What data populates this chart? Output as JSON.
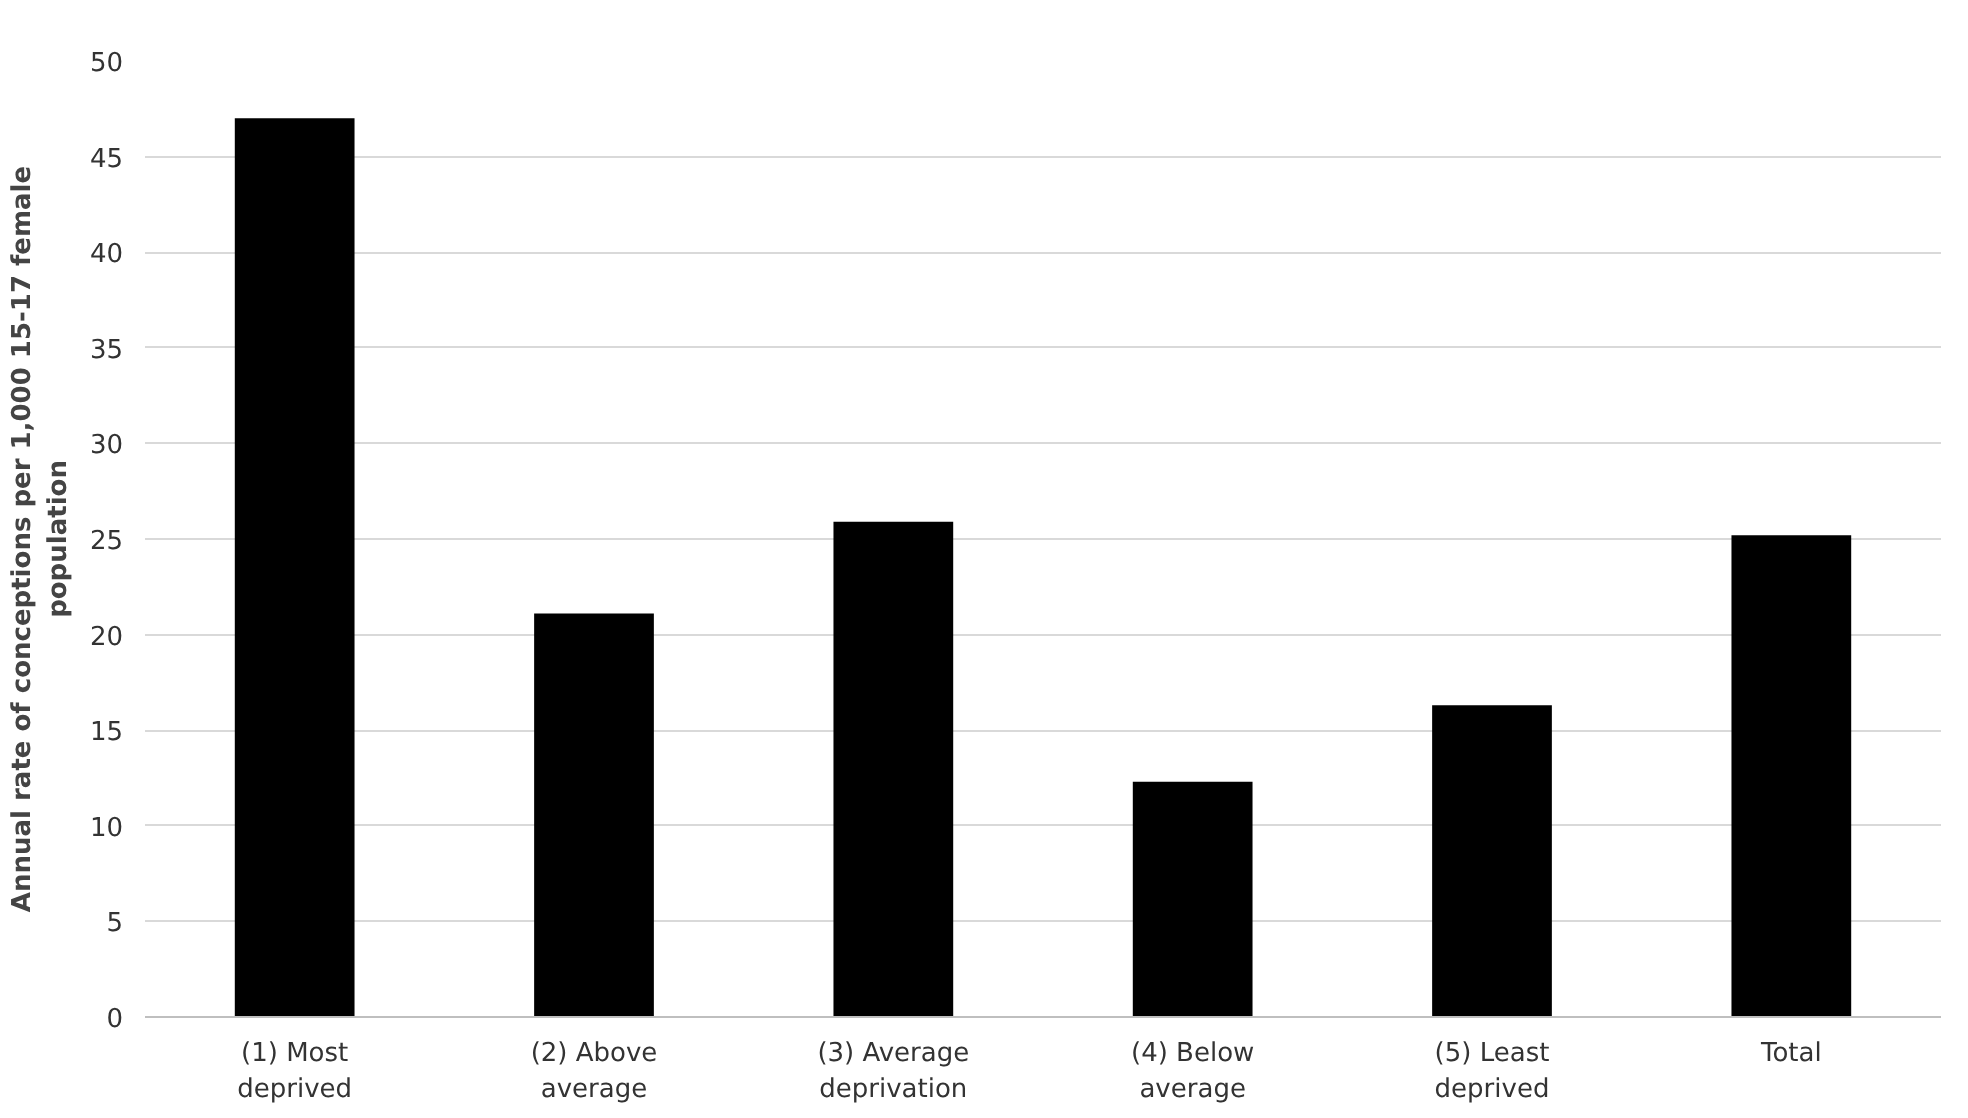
{
  "chart_data": {
    "type": "bar",
    "ylabel": "Annual rate of conceptions per 1,000 15-17 female population",
    "categories": [
      "(1) Most deprived",
      "(2) Above average",
      "(3) Average deprivation",
      "(4) Below average",
      "(5) Least deprived",
      "Total"
    ],
    "values": [
      47.0,
      21.1,
      25.9,
      12.3,
      16.3,
      25.2
    ],
    "color": "#000000",
    "ylim": [
      0,
      50
    ],
    "yticks": [
      0,
      5,
      10,
      15,
      20,
      25,
      30,
      35,
      40,
      45,
      50
    ],
    "grid": "y"
  }
}
